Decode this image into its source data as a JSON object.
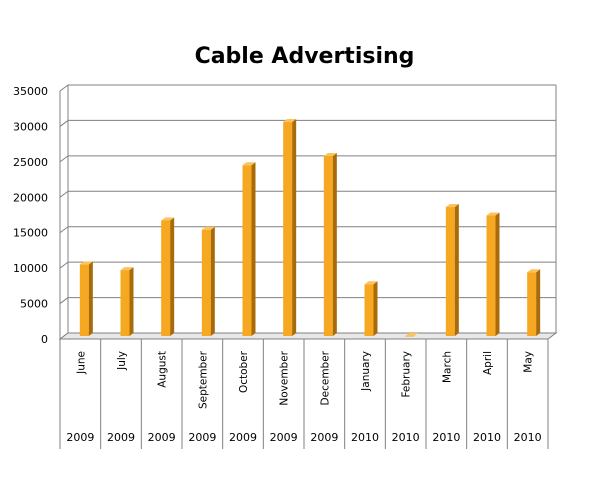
{
  "chart_data": {
    "type": "bar",
    "title": "Cable Advertising",
    "xlabel": "",
    "ylabel": "",
    "ylim": [
      0,
      35000
    ],
    "yticks": [
      0,
      5000,
      10000,
      15000,
      20000,
      25000,
      30000,
      35000
    ],
    "grid": true,
    "legend": "none",
    "categories": [
      {
        "month": "June",
        "year": "2009"
      },
      {
        "month": "July",
        "year": "2009"
      },
      {
        "month": "August",
        "year": "2009"
      },
      {
        "month": "September",
        "year": "2009"
      },
      {
        "month": "October",
        "year": "2009"
      },
      {
        "month": "November",
        "year": "2009"
      },
      {
        "month": "December",
        "year": "2009"
      },
      {
        "month": "January",
        "year": "2010"
      },
      {
        "month": "February",
        "year": "2010"
      },
      {
        "month": "March",
        "year": "2010"
      },
      {
        "month": "April",
        "year": "2010"
      },
      {
        "month": "May",
        "year": "2010"
      }
    ],
    "values": [
      10100,
      9300,
      16300,
      15000,
      24100,
      30200,
      25400,
      7300,
      0,
      18200,
      17000,
      9000
    ],
    "colors": {
      "bar_front": "#f7a823",
      "bar_side": "#a86b08",
      "bar_top": "#fbc35a",
      "grid": "#808080",
      "wall": "#ffffff"
    }
  }
}
